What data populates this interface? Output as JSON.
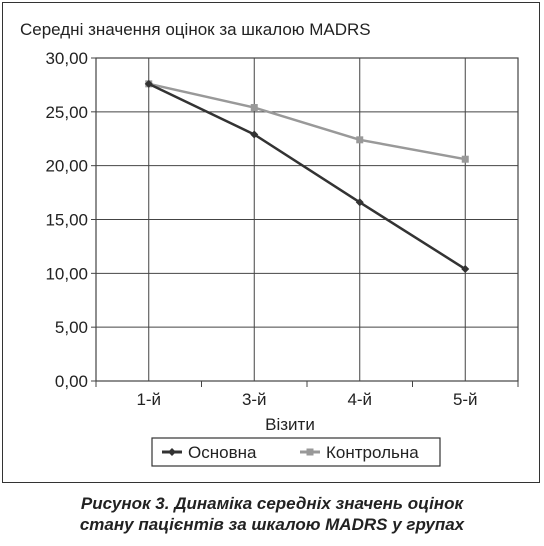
{
  "chart_data": {
    "type": "line",
    "title": "Середні значення оцінок за шкалою MADRS",
    "xlabel": "Візити",
    "ylabel": "",
    "categories": [
      "1-й",
      "3-й",
      "4-й",
      "5-й"
    ],
    "ylim": [
      0,
      30
    ],
    "yticks": [
      "0,00",
      "5,00",
      "10,00",
      "15,00",
      "20,00",
      "25,00",
      "30,00"
    ],
    "grid": true,
    "legend_position": "bottom",
    "series": [
      {
        "name": "Основна",
        "values": [
          27.6,
          22.9,
          16.6,
          10.4
        ],
        "color": "#333333",
        "marker": "diamond"
      },
      {
        "name": "Контрольна",
        "values": [
          27.6,
          25.4,
          22.4,
          20.6
        ],
        "color": "#999999",
        "marker": "square"
      }
    ]
  },
  "caption": {
    "line1": "Рисунок 3. Динаміка середніх значень оцінок",
    "line2": "стану пацієнтів за шкалою MADRS у групах"
  }
}
